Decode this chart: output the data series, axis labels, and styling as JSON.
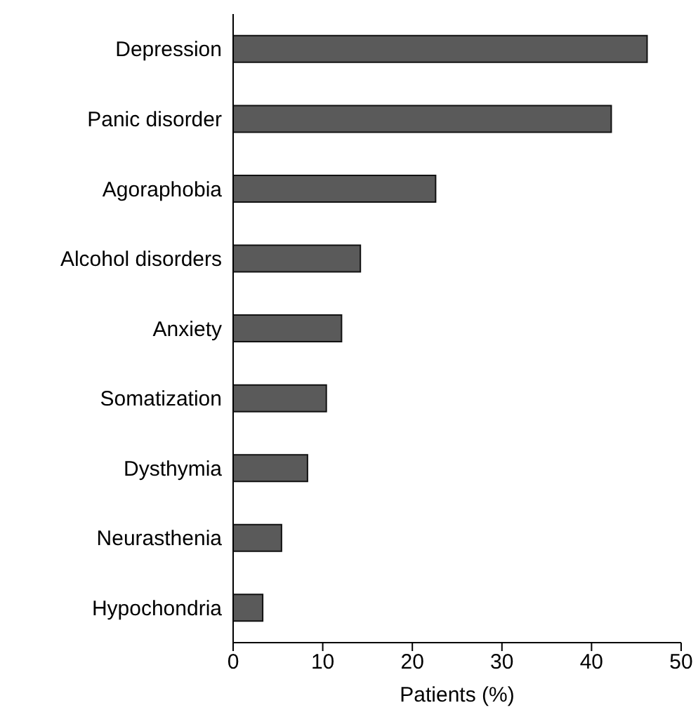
{
  "chart_data": {
    "type": "bar",
    "orientation": "horizontal",
    "xlabel": "Patients (%)",
    "categories": [
      "Depression",
      "Panic disorder",
      "Agoraphobia",
      "Alcohol disorders",
      "Anxiety",
      "Somatization",
      "Dysthymia",
      "Neurasthenia",
      "Hypochondria"
    ],
    "values": [
      46.2,
      42.2,
      22.6,
      14.2,
      12.1,
      10.4,
      8.3,
      5.4,
      3.3
    ],
    "color": "#5a5a5a",
    "xlim": [
      0,
      50
    ],
    "xticks": [
      0,
      10,
      20,
      30,
      40,
      50
    ],
    "grid": false,
    "legend": false
  }
}
